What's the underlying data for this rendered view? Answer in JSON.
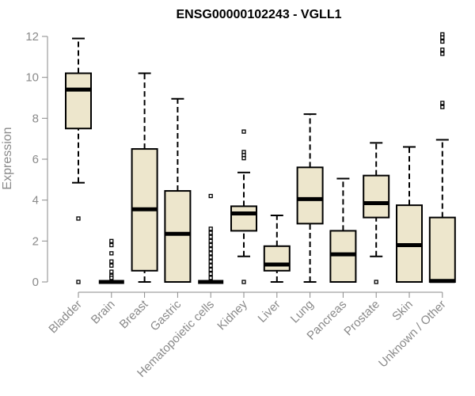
{
  "chart_data": {
    "type": "boxplot",
    "title": "ENSG00000102243 - VGLL1",
    "ylabel": "Expression",
    "ylim": [
      0,
      12
    ],
    "yticks": [
      0,
      2,
      4,
      6,
      8,
      10,
      12
    ],
    "grid": false,
    "categories": [
      "Bladder",
      "Brain",
      "Breast",
      "Gastric",
      "Hematopoietic cells",
      "Kidney",
      "Liver",
      "Lung",
      "Pancreas",
      "Prostate",
      "Skin",
      "Unknown / Other"
    ],
    "boxes": [
      {
        "category": "Bladder",
        "whisker_low": 4.85,
        "q1": 7.5,
        "median": 9.4,
        "q3": 10.2,
        "whisker_high": 11.9,
        "outliers": [
          3.1,
          0
        ]
      },
      {
        "category": "Brain",
        "whisker_low": 0,
        "q1": 0,
        "median": 0,
        "q3": 0,
        "whisker_high": 0,
        "outliers": [
          2.0,
          1.8,
          1.4,
          1.0,
          0.8,
          0.5,
          0.3,
          0.2
        ]
      },
      {
        "category": "Breast",
        "whisker_low": 0,
        "q1": 0.55,
        "median": 3.55,
        "q3": 6.5,
        "whisker_high": 10.2,
        "outliers": []
      },
      {
        "category": "Gastric",
        "whisker_low": 0,
        "q1": 0,
        "median": 2.35,
        "q3": 4.45,
        "whisker_high": 8.95,
        "outliers": []
      },
      {
        "category": "Hematopoietic cells",
        "whisker_low": 0,
        "q1": 0,
        "median": 0,
        "q3": 0,
        "whisker_high": 0,
        "outliers": [
          4.2,
          2.6,
          2.4,
          2.2,
          2.0,
          1.8,
          1.6,
          1.4,
          1.2,
          1.0,
          0.8,
          0.6,
          0.4,
          0.2
        ]
      },
      {
        "category": "Kidney",
        "whisker_low": 1.25,
        "q1": 2.5,
        "median": 3.35,
        "q3": 3.7,
        "whisker_high": 5.35,
        "outliers": [
          7.35,
          6.35,
          6.2,
          6.05,
          0
        ]
      },
      {
        "category": "Liver",
        "whisker_low": 0,
        "q1": 0.55,
        "median": 0.85,
        "q3": 1.75,
        "whisker_high": 3.25,
        "outliers": []
      },
      {
        "category": "Lung",
        "whisker_low": 0,
        "q1": 2.85,
        "median": 4.05,
        "q3": 5.6,
        "whisker_high": 8.2,
        "outliers": []
      },
      {
        "category": "Pancreas",
        "whisker_low": 0,
        "q1": 0,
        "median": 1.35,
        "q3": 2.5,
        "whisker_high": 5.05,
        "outliers": []
      },
      {
        "category": "Prostate",
        "whisker_low": 1.25,
        "q1": 3.15,
        "median": 3.85,
        "q3": 5.2,
        "whisker_high": 6.8,
        "outliers": [
          0
        ]
      },
      {
        "category": "Skin",
        "whisker_low": 0,
        "q1": 0,
        "median": 1.8,
        "q3": 3.75,
        "whisker_high": 6.6,
        "outliers": []
      },
      {
        "category": "Unknown / Other",
        "whisker_low": 0,
        "q1": 0,
        "median": 0.05,
        "q3": 3.15,
        "whisker_high": 6.95,
        "outliers": [
          12.1,
          11.95,
          11.75,
          11.35,
          11.15,
          8.75,
          8.55
        ]
      }
    ]
  },
  "colors": {
    "box_fill": "#ede6cc",
    "box_stroke": "#000000",
    "axis": "#8a8a8a"
  }
}
